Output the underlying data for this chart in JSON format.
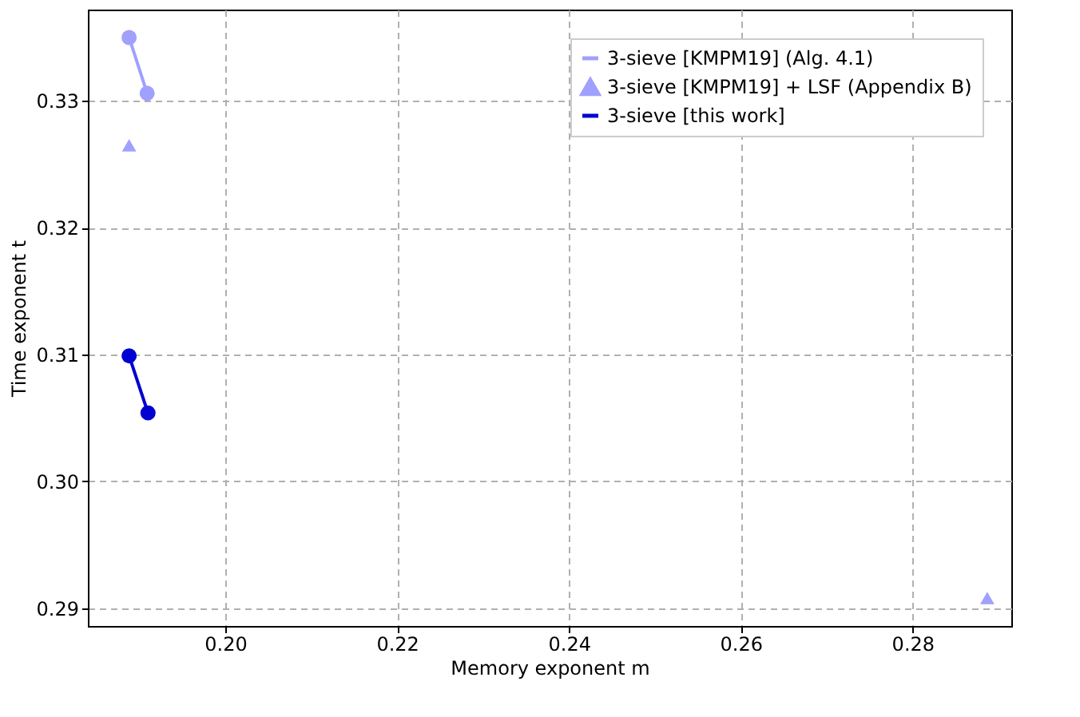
{
  "chart_data": {
    "type": "line",
    "xlabel": "Memory exponent m",
    "ylabel": "Time exponent t",
    "xlim": [
      0.184,
      0.2915
    ],
    "xticks": [
      {
        "value": 0.2,
        "label": "0.20"
      },
      0.22,
      0.24,
      0.26,
      0.28
    ],
    "ylim": [
      0.2886,
      0.3372
    ],
    "yticks": [
      0.29,
      {
        "value": 0.3,
        "label": "0.30"
      },
      0.31,
      0.32,
      0.33
    ],
    "grid": true,
    "legend": "top right",
    "series": [
      {
        "name": "3-sieve [KMPM19] (Alg. 4.1)",
        "marker": "circle",
        "color": "#a0a0ff",
        "x": [
          0.1888,
          0.1909
        ],
        "values": [
          0.335,
          0.3306
        ]
      },
      {
        "name": "3-sieve [KMPM19] + LSF (Appendix B)",
        "type": "scatter",
        "marker": "triangle",
        "color": "#a0a0ff",
        "x": [
          0.1888,
          0.2887
        ],
        "values": [
          0.3265,
          0.2908
        ]
      },
      {
        "name": "3-sieve [this work]",
        "marker": "circle",
        "color": "#0000d0",
        "x": [
          0.1888,
          0.191
        ],
        "values": [
          0.3099,
          0.3054
        ]
      }
    ]
  }
}
